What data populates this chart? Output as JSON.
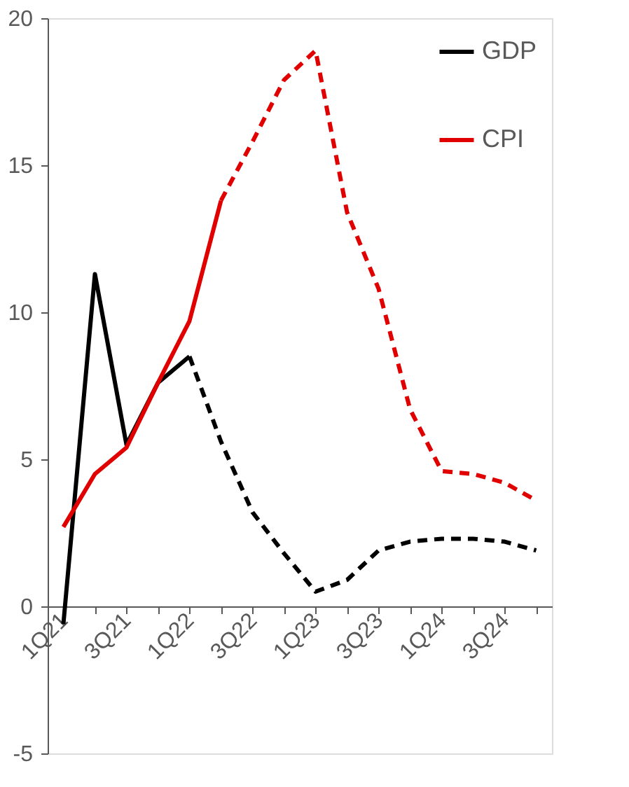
{
  "chart_data": {
    "type": "line",
    "categories": [
      "1Q21",
      null,
      "3Q21",
      null,
      "1Q22",
      null,
      "3Q22",
      null,
      "1Q23",
      null,
      "3Q23",
      null,
      "1Q24",
      null,
      "3Q24",
      null
    ],
    "series": [
      {
        "name": "GDP",
        "color": "#000000",
        "line_style": "solid",
        "values": [
          -0.6,
          11.3,
          5.5,
          7.6,
          8.5,
          null,
          null,
          null,
          null,
          null,
          null,
          null,
          null,
          null,
          null,
          null
        ]
      },
      {
        "color": "#000000",
        "line_style": "dashed",
        "values": [
          null,
          null,
          null,
          null,
          8.5,
          5.6,
          3.2,
          1.8,
          0.5,
          0.9,
          1.9,
          2.2,
          2.3,
          2.3,
          2.2,
          1.9
        ]
      },
      {
        "name": "CPI",
        "color": "#e00000",
        "line_style": "solid",
        "values": [
          2.7,
          4.5,
          5.4,
          7.6,
          9.7,
          13.8,
          null,
          null,
          null,
          null,
          null,
          null,
          null,
          null,
          null,
          null
        ]
      },
      {
        "color": "#e00000",
        "line_style": "dashed",
        "values": [
          null,
          null,
          null,
          null,
          null,
          13.8,
          15.8,
          17.9,
          18.9,
          13.4,
          10.8,
          6.7,
          4.6,
          4.5,
          4.2,
          3.6
        ]
      }
    ],
    "ylim": [
      -5,
      20
    ],
    "yticks": [
      -5,
      0,
      5,
      10,
      15,
      20
    ],
    "grid": false,
    "legend": "top right",
    "marker": "none"
  }
}
